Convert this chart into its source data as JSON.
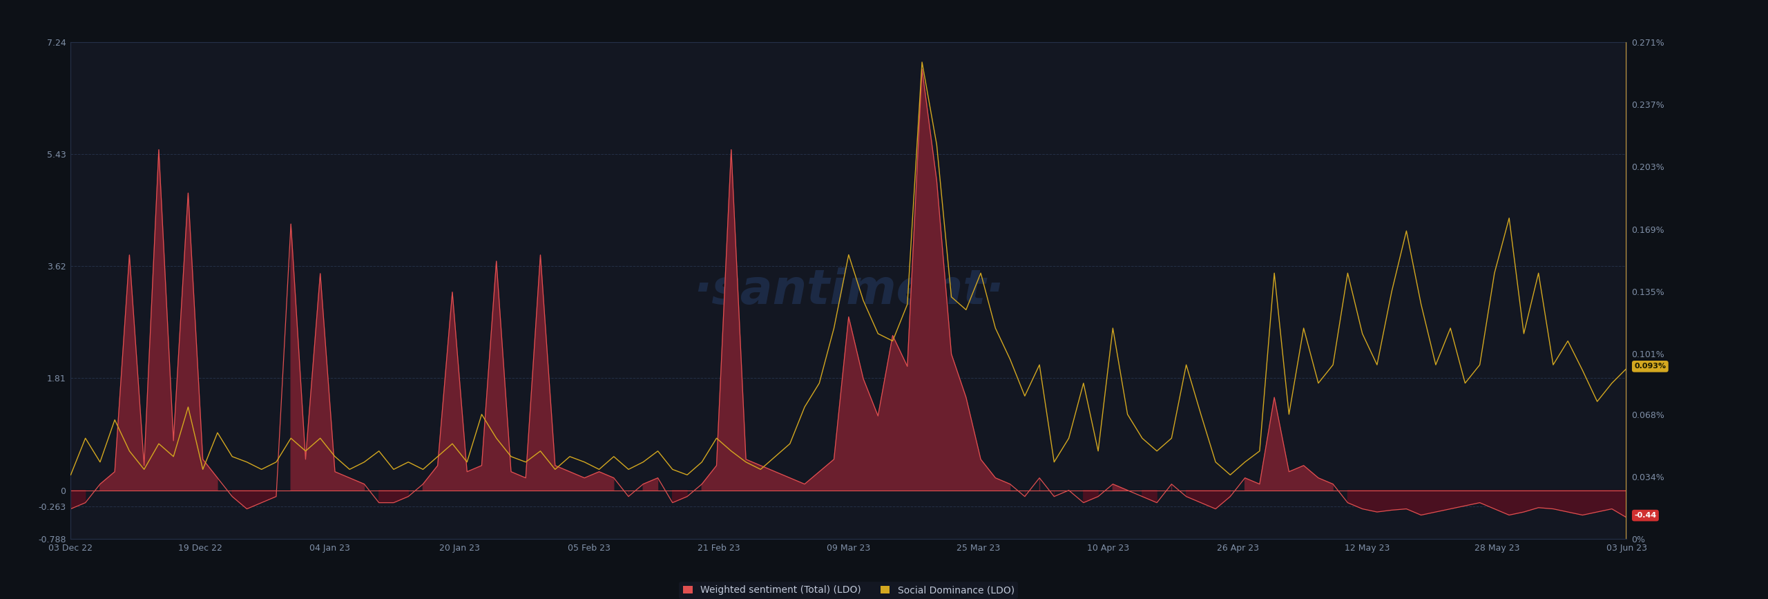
{
  "background_color": "#0d1117",
  "plot_bg_color": "#131722",
  "grid_color": "#253048",
  "watermark_color": "#1e2d4a",
  "left_ylim": [
    -0.788,
    7.24
  ],
  "right_ylim": [
    0.0,
    0.271
  ],
  "left_yticks": [
    -0.788,
    -0.263,
    0,
    1.81,
    3.62,
    5.43,
    7.24
  ],
  "left_ytick_labels": [
    "-0.788",
    "-0.263",
    "0",
    "1.81",
    "3.62",
    "5.43",
    "7.24"
  ],
  "right_yticks": [
    0.0,
    0.034,
    0.068,
    0.101,
    0.135,
    0.169,
    0.203,
    0.237,
    0.271
  ],
  "right_ytick_labels": [
    "0%",
    "0.034%",
    "0.068%",
    "0.101%",
    "0.135%",
    "0.169%",
    "0.203%",
    "0.237%",
    "0.271%"
  ],
  "xlabel_dates": [
    "03 Dec 22",
    "19 Dec 22",
    "04 Jan 23",
    "20 Jan 23",
    "05 Feb 23",
    "21 Feb 23",
    "09 Mar 23",
    "25 Mar 23",
    "10 Apr 23",
    "26 Apr 23",
    "12 May 23",
    "28 May 23",
    "03 Jun 23"
  ],
  "sentiment_color": "#e05050",
  "sentiment_fill_pos": "#6b1f2e",
  "sentiment_fill_neg": "#4a1020",
  "social_color": "#d4a820",
  "legend_sentiment_label": "Weighted sentiment (Total) (LDO)",
  "legend_social_label": "Social Dominance (LDO)",
  "sentiment_current": "-0.44",
  "social_current": "0.093%",
  "sentiment_data": [
    -0.3,
    -0.2,
    0.1,
    0.3,
    3.8,
    0.4,
    5.5,
    0.8,
    4.8,
    0.5,
    0.2,
    -0.1,
    -0.3,
    -0.2,
    -0.1,
    4.3,
    0.5,
    3.5,
    0.3,
    0.2,
    0.1,
    -0.2,
    -0.2,
    -0.1,
    0.1,
    0.4,
    3.2,
    0.3,
    0.4,
    3.7,
    0.3,
    0.2,
    3.8,
    0.4,
    0.3,
    0.2,
    0.3,
    0.2,
    -0.1,
    0.1,
    0.2,
    -0.2,
    -0.1,
    0.1,
    0.4,
    5.5,
    0.5,
    0.4,
    0.3,
    0.2,
    0.1,
    0.3,
    0.5,
    2.8,
    1.8,
    1.2,
    2.5,
    2.0,
    6.8,
    5.0,
    2.2,
    1.5,
    0.5,
    0.2,
    0.1,
    -0.1,
    0.2,
    -0.1,
    0.0,
    -0.2,
    -0.1,
    0.1,
    0.0,
    -0.1,
    -0.2,
    0.1,
    -0.1,
    -0.2,
    -0.3,
    -0.1,
    0.2,
    0.1,
    1.5,
    0.3,
    0.4,
    0.2,
    0.1,
    -0.2,
    -0.3,
    -0.35,
    -0.32,
    -0.3,
    -0.4,
    -0.35,
    -0.3,
    -0.25,
    -0.2,
    -0.3,
    -0.4,
    -0.35,
    -0.28,
    -0.3,
    -0.35,
    -0.4,
    -0.35,
    -0.3,
    -0.44
  ],
  "social_data": [
    0.035,
    0.055,
    0.042,
    0.065,
    0.048,
    0.038,
    0.052,
    0.045,
    0.072,
    0.038,
    0.058,
    0.045,
    0.042,
    0.038,
    0.042,
    0.055,
    0.048,
    0.055,
    0.045,
    0.038,
    0.042,
    0.048,
    0.038,
    0.042,
    0.038,
    0.045,
    0.052,
    0.042,
    0.068,
    0.055,
    0.045,
    0.042,
    0.048,
    0.038,
    0.045,
    0.042,
    0.038,
    0.045,
    0.038,
    0.042,
    0.048,
    0.038,
    0.035,
    0.042,
    0.055,
    0.048,
    0.042,
    0.038,
    0.045,
    0.052,
    0.072,
    0.085,
    0.115,
    0.155,
    0.13,
    0.112,
    0.108,
    0.128,
    0.26,
    0.215,
    0.132,
    0.125,
    0.145,
    0.115,
    0.098,
    0.078,
    0.095,
    0.042,
    0.055,
    0.085,
    0.048,
    0.115,
    0.068,
    0.055,
    0.048,
    0.055,
    0.095,
    0.068,
    0.042,
    0.035,
    0.042,
    0.048,
    0.145,
    0.068,
    0.115,
    0.085,
    0.095,
    0.145,
    0.112,
    0.095,
    0.135,
    0.168,
    0.128,
    0.095,
    0.115,
    0.085,
    0.095,
    0.145,
    0.175,
    0.112,
    0.145,
    0.095,
    0.108,
    0.092,
    0.075,
    0.085,
    0.093
  ]
}
